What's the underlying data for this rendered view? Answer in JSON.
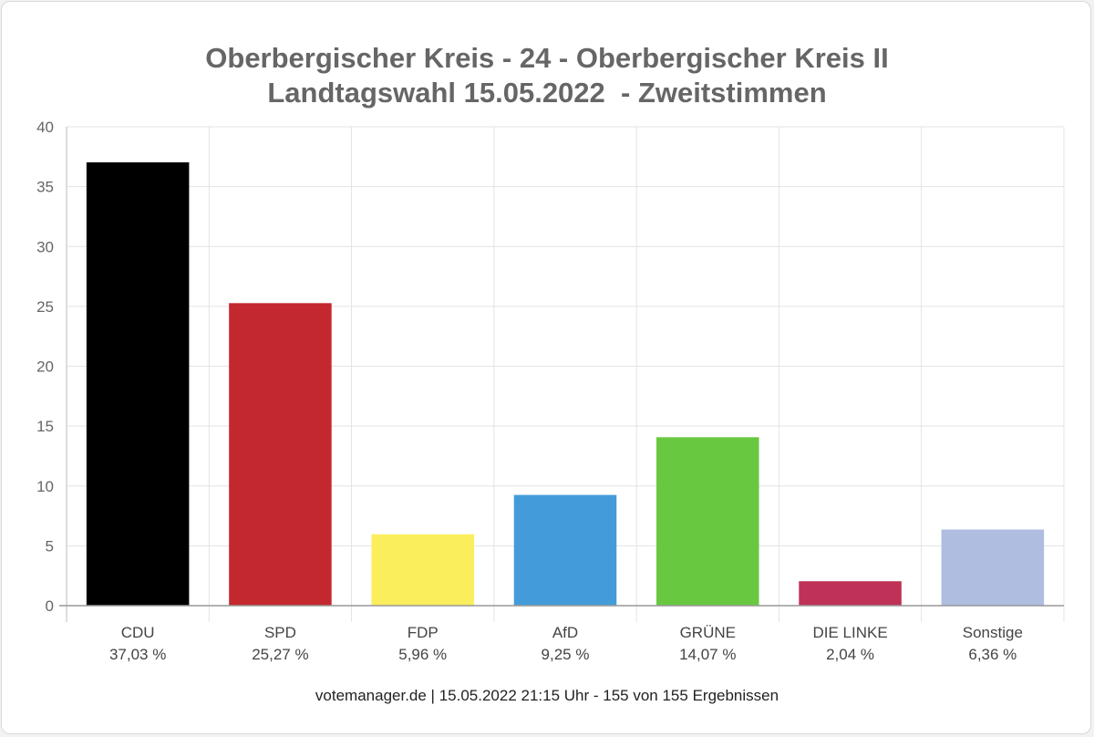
{
  "chart_data": {
    "type": "bar",
    "title": [
      "Oberbergischer Kreis - 24 - Oberbergischer Kreis II",
      "Landtagswahl 15.05.2022  - Zweitstimmen"
    ],
    "categories": [
      "CDU",
      "SPD",
      "FDP",
      "AfD",
      "GRÜNE",
      "DIE LINKE",
      "Sonstige"
    ],
    "value_labels": [
      "37,03 %",
      "25,27 %",
      "5,96 %",
      "9,25 %",
      "14,07 %",
      "2,04 %",
      "6,36 %"
    ],
    "values": [
      37.03,
      25.27,
      5.96,
      9.25,
      14.07,
      2.04,
      6.36
    ],
    "colors": [
      "#000000",
      "#c4282f",
      "#fbee5c",
      "#439cd9",
      "#68c840",
      "#be3257",
      "#aebde0"
    ],
    "ylim": [
      0,
      40
    ],
    "yticks": [
      "0",
      "5",
      "10",
      "15",
      "20",
      "25",
      "30",
      "35",
      "40"
    ],
    "grid": true,
    "legend": "none"
  },
  "footer": "votemanager.de | 15.05.2022 21:15 Uhr - 155 von 155 Ergebnissen"
}
